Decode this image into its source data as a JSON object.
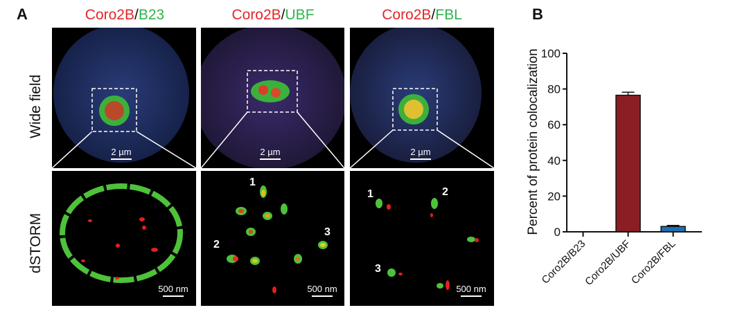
{
  "panel_a": {
    "letter": "A",
    "columns": [
      {
        "red": "Coro2B",
        "sep": "/",
        "green": "B23"
      },
      {
        "red": "Coro2B",
        "sep": "/",
        "green": "UBF"
      },
      {
        "red": "Coro2B",
        "sep": "/",
        "green": "FBL"
      }
    ],
    "rows": [
      "Wide field",
      "dSTORM"
    ],
    "scale_wide": "2 µm",
    "scale_storm": "500 nm",
    "markers": [
      "1",
      "2",
      "3"
    ]
  },
  "panel_b": {
    "letter": "B"
  },
  "chart_data": {
    "type": "bar",
    "title": "",
    "xlabel": "",
    "ylabel": "Percent of protein colocalization",
    "categories": [
      "Coro2B/B23",
      "Coro2B/UBF",
      "Coro2B/FBL"
    ],
    "values": [
      0,
      76.5,
      3
    ],
    "error": [
      0,
      1.7,
      0.6
    ],
    "colors": [
      "#8b1e24",
      "#8b1e24",
      "#1f6fb2"
    ],
    "ylim": [
      0,
      100
    ],
    "yticks": [
      "0",
      "20",
      "40",
      "60",
      "80",
      "100"
    ],
    "grid": false
  }
}
